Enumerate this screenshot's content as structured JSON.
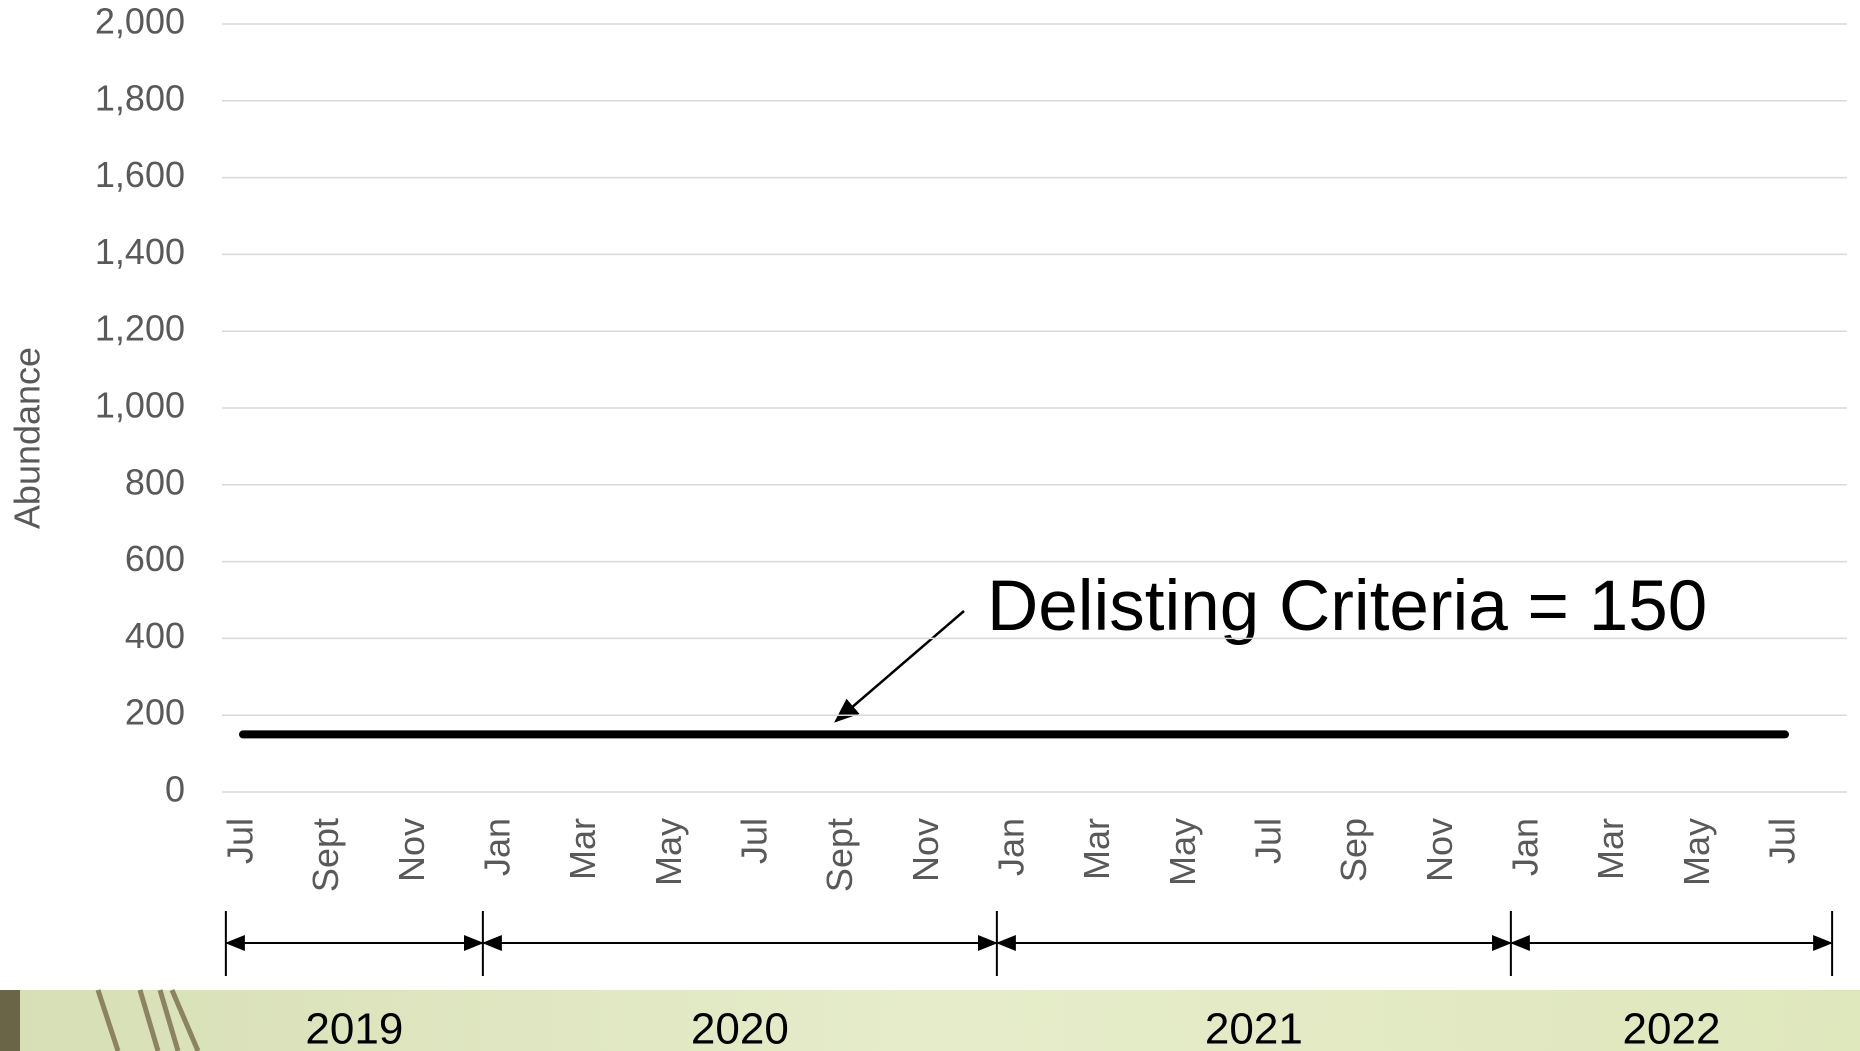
{
  "chart_data": {
    "type": "line",
    "y_label": "Abundance",
    "annotation": "Delisting Criteria = 150",
    "categories": [
      "Jul",
      "Sept",
      "Nov",
      "Jan",
      "Mar",
      "May",
      "Jul",
      "Sept",
      "Nov",
      "Jan",
      "Mar",
      "May",
      "Jul",
      "Sep",
      "Nov",
      "Jan",
      "Mar",
      "May",
      "Jul"
    ],
    "series": [
      {
        "color": "#000000",
        "values": [
          150,
          150,
          150,
          150,
          150,
          150,
          150,
          150,
          150,
          150,
          150,
          150,
          150,
          150,
          150,
          150,
          150,
          150,
          150
        ]
      }
    ],
    "year_labels": [
      "2019",
      "2020",
      "2021",
      "2022"
    ],
    "ylim": [
      0,
      2000
    ],
    "yticks": [
      0,
      200,
      400,
      600,
      800,
      {
        "value": 1000,
        "label": "1,000"
      },
      {
        "value": 1200,
        "label": "1,200"
      },
      {
        "value": 1400,
        "label": "1,400"
      },
      {
        "value": 1600,
        "label": "1,600"
      },
      {
        "value": 1800,
        "label": "1,800"
      },
      {
        "value": 2000,
        "label": "2,000"
      }
    ],
    "grid": true
  }
}
